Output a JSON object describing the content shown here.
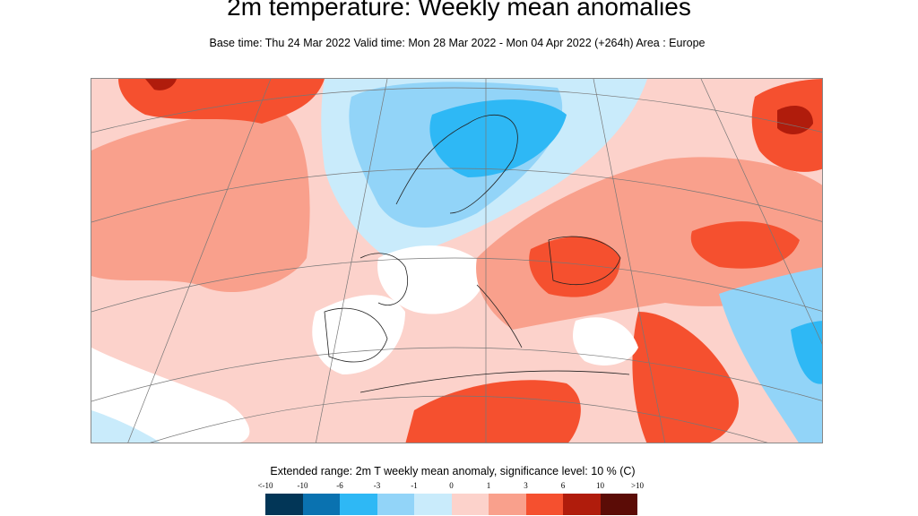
{
  "title": "2m temperature: Weekly mean anomalies",
  "subtitle": "Base time: Thu 24 Mar 2022 Valid time: Mon 28 Mar 2022 - Mon 04 Apr 2022 (+264h) Area : Europe",
  "chart_data": {
    "type": "heatmap",
    "title": "2m temperature: Weekly mean anomalies",
    "subtitle": "Base time: Thu 24 Mar 2022 Valid time: Mon 28 Mar 2022 - Mon 04 Apr 2022 (+264h) Area : Europe",
    "area": "Europe",
    "legend": {
      "title": "Extended range: 2m T weekly mean anomaly, significance level: 10 % (C)",
      "tick_labels": [
        "<-10",
        "-10",
        "-6",
        "-3",
        "-1",
        "0",
        "1",
        "3",
        "6",
        "10",
        ">10"
      ],
      "colors": [
        "#023657",
        "#0a72b0",
        "#2eb8f5",
        "#92d4f8",
        "#c9ebfb",
        "#fcd2cb",
        "#f9a08c",
        "#f5502f",
        "#b01c0c",
        "#5b0c06"
      ],
      "placement": "bottom"
    }
  }
}
